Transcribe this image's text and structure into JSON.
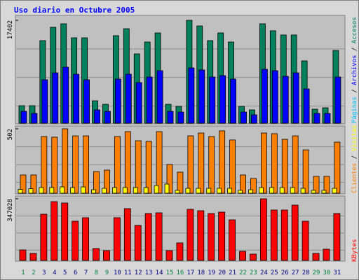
{
  "chart_data": {
    "type": "bar",
    "title": "Uso diario en Octubre 2005",
    "separator": "/",
    "categories": [
      "1",
      "2",
      "3",
      "4",
      "5",
      "6",
      "7",
      "8",
      "9",
      "10",
      "11",
      "12",
      "13",
      "14",
      "15",
      "16",
      "17",
      "18",
      "19",
      "20",
      "21",
      "22",
      "23",
      "24",
      "25",
      "26",
      "27",
      "28",
      "29",
      "30",
      "31"
    ],
    "category_colors": [
      "#008040",
      "#008040",
      "#000080",
      "#000080",
      "#000080",
      "#000080",
      "#000080",
      "#008040",
      "#008040",
      "#000080",
      "#000080",
      "#000080",
      "#000080",
      "#000080",
      "#008040",
      "#008040",
      "#000080",
      "#000080",
      "#000080",
      "#000080",
      "#000080",
      "#008040",
      "#008040",
      "#000080",
      "#000080",
      "#000080",
      "#000080",
      "#000080",
      "#008040",
      "#008040",
      "#000080"
    ],
    "panels": [
      {
        "ylim": [
          0,
          17402
        ],
        "yticks": [
          17402
        ],
        "series": [
          {
            "name": "Páginas",
            "color": "#00c0ff"
          },
          {
            "name": "Archivos",
            "color": "#0000ff",
            "values": [
              2010,
              1660,
              7340,
              8520,
              9470,
              8290,
              7340,
              2250,
              2010,
              7460,
              8290,
              6870,
              7810,
              8880,
              2010,
              1890,
              9350,
              9000,
              7810,
              8050,
              7460,
              1890,
              1420,
              9120,
              8880,
              7930,
              8520,
              5800,
              1660,
              1660,
              7810
            ]
          },
          {
            "name": "Accesos",
            "color": "#00805c",
            "values": [
              2960,
              2960,
              13970,
              16220,
              16810,
              14440,
              14440,
              3790,
              3200,
              14800,
              15980,
              11720,
              13730,
              15270,
              3200,
              2840,
              17402,
              16450,
              13970,
              15270,
              13730,
              2840,
              2250,
              16810,
              15630,
              14920,
              14920,
              10540,
              2370,
              2600,
              12310
            ]
          }
        ]
      },
      {
        "ylim": [
          0,
          502
        ],
        "yticks": [
          502
        ],
        "series": [
          {
            "name": "Clientes",
            "color": "#ff8000",
            "values": [
              142,
              142,
              442,
              437,
              502,
              447,
              447,
              169,
              180,
              442,
              480,
              409,
              404,
              480,
              224,
              164,
              447,
              469,
              442,
              486,
              415,
              142,
              115,
              469,
              464,
              420,
              447,
              338,
              131,
              131,
              398
            ]
          },
          {
            "name": "Visitas",
            "color": "#ffff00",
            "values": [
              30,
              35,
              44,
              44,
              49,
              44,
              49,
              27,
              38,
              44,
              44,
              44,
              44,
              60,
              71,
              22,
              38,
              38,
              38,
              38,
              38,
              22,
              27,
              44,
              44,
              44,
              44,
              38,
              22,
              22,
              38
            ]
          }
        ]
      },
      {
        "ylim": [
          0,
          347028
        ],
        "yticks": [
          347028
        ],
        "series": [
          {
            "name": "KBytes",
            "color": "#ff0000",
            "values": [
              59150,
              39440,
              260270,
              331250,
              323370,
              220840,
              240550,
              67040,
              55210,
              240550,
              291820,
              197180,
              264220,
              268160,
              55210,
              98590,
              287880,
              279990,
              264220,
              272100,
              228720,
              51270,
              35490,
              347028,
              283930,
              283930,
              311540,
              220840,
              39440,
              63100,
              264220
            ]
          }
        ]
      }
    ]
  }
}
